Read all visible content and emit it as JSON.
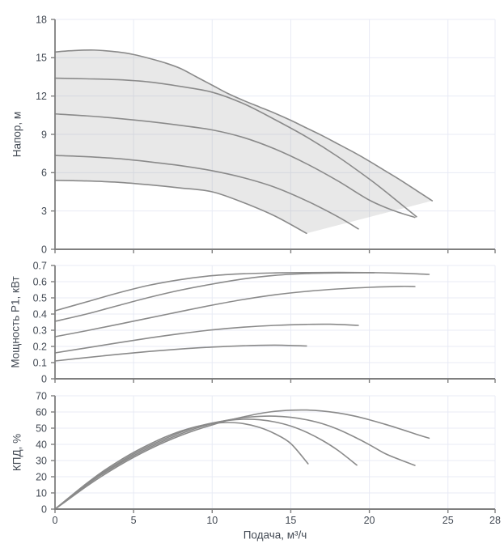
{
  "style": {
    "background": "#ffffff",
    "curve_color": "#8a8a8a",
    "grid_color": "#e8ebf5",
    "axis_color": "#7f7f7f",
    "text_color": "#434a54",
    "envelope_fill": "rgba(160,160,160,0.24)"
  },
  "axes": {
    "x": {
      "label": "Подача, м³/ч",
      "min": 0,
      "max": 28,
      "ticks": [
        0,
        5,
        10,
        15,
        20,
        25,
        28
      ],
      "grid": [
        5,
        10,
        15,
        20,
        25,
        28
      ]
    }
  },
  "chart_data": [
    {
      "type": "line",
      "id": "head",
      "ylabel": "Напор, м",
      "xlabel": "Подача, м³/ч",
      "ylim": [
        0,
        18
      ],
      "yticks": [
        0,
        3,
        6,
        9,
        12,
        15,
        18
      ],
      "grid": true,
      "legend": "none",
      "envelope": {
        "upper_series": 0,
        "lower_series": 4
      },
      "series": [
        {
          "name": "curve-1",
          "points": [
            [
              0,
              15.45
            ],
            [
              1,
              15.55
            ],
            [
              2.5,
              15.6
            ],
            [
              4,
              15.45
            ],
            [
              5,
              15.25
            ],
            [
              6,
              14.95
            ],
            [
              7,
              14.6
            ],
            [
              8,
              14.15
            ],
            [
              9,
              13.5
            ],
            [
              10,
              12.85
            ],
            [
              11,
              12.2
            ],
            [
              12,
              11.65
            ],
            [
              13,
              11.15
            ],
            [
              14,
              10.65
            ],
            [
              15,
              10.1
            ],
            [
              16,
              9.5
            ],
            [
              17,
              8.9
            ],
            [
              18,
              8.25
            ],
            [
              19,
              7.6
            ],
            [
              20,
              6.9
            ],
            [
              21,
              6.15
            ],
            [
              22,
              5.4
            ],
            [
              23,
              4.6
            ],
            [
              24,
              3.8
            ]
          ]
        },
        {
          "name": "curve-2",
          "points": [
            [
              0,
              13.4
            ],
            [
              2,
              13.35
            ],
            [
              4,
              13.28
            ],
            [
              6,
              13.1
            ],
            [
              8,
              12.75
            ],
            [
              10,
              12.3
            ],
            [
              12,
              11.4
            ],
            [
              14,
              10.15
            ],
            [
              16,
              8.8
            ],
            [
              18,
              7.25
            ],
            [
              20,
              5.5
            ],
            [
              21,
              4.55
            ],
            [
              22,
              3.55
            ],
            [
              23,
              2.55
            ]
          ]
        },
        {
          "name": "curve-3",
          "points": [
            [
              0,
              10.6
            ],
            [
              2,
              10.45
            ],
            [
              4,
              10.25
            ],
            [
              6,
              10.0
            ],
            [
              8,
              9.7
            ],
            [
              10,
              9.35
            ],
            [
              12,
              8.75
            ],
            [
              14,
              7.85
            ],
            [
              16,
              6.7
            ],
            [
              18,
              5.35
            ],
            [
              20,
              3.85
            ],
            [
              21.5,
              3.05
            ],
            [
              22.9,
              2.5
            ]
          ]
        },
        {
          "name": "curve-4",
          "points": [
            [
              0,
              7.35
            ],
            [
              2,
              7.25
            ],
            [
              4,
              7.1
            ],
            [
              6,
              6.85
            ],
            [
              8,
              6.55
            ],
            [
              10,
              6.15
            ],
            [
              12,
              5.6
            ],
            [
              14,
              4.85
            ],
            [
              16,
              3.8
            ],
            [
              18,
              2.55
            ],
            [
              19.3,
              1.6
            ]
          ]
        },
        {
          "name": "curve-5",
          "points": [
            [
              0,
              5.4
            ],
            [
              2,
              5.35
            ],
            [
              4,
              5.25
            ],
            [
              6,
              5.05
            ],
            [
              8,
              4.8
            ],
            [
              10,
              4.5
            ],
            [
              12,
              3.65
            ],
            [
              14,
              2.6
            ],
            [
              16,
              1.25
            ]
          ]
        }
      ]
    },
    {
      "type": "line",
      "id": "power",
      "ylabel": "Мощность P1, кВт",
      "xlabel": "Подача, м³/ч",
      "ylim": [
        0,
        0.7
      ],
      "yticks": [
        0,
        0.1,
        0.2,
        0.3,
        0.4,
        0.5,
        0.6,
        0.7
      ],
      "grid": true,
      "legend": "none",
      "series": [
        {
          "name": "curve-1",
          "points": [
            [
              0,
              0.42
            ],
            [
              2,
              0.475
            ],
            [
              4,
              0.53
            ],
            [
              6,
              0.578
            ],
            [
              8,
              0.613
            ],
            [
              10,
              0.637
            ],
            [
              12,
              0.649
            ],
            [
              14,
              0.654
            ],
            [
              16,
              0.656
            ],
            [
              18,
              0.657
            ],
            [
              20,
              0.656
            ],
            [
              22,
              0.652
            ],
            [
              23.8,
              0.645
            ]
          ]
        },
        {
          "name": "curve-2",
          "points": [
            [
              0,
              0.355
            ],
            [
              2,
              0.4
            ],
            [
              4,
              0.452
            ],
            [
              6,
              0.503
            ],
            [
              8,
              0.548
            ],
            [
              10,
              0.585
            ],
            [
              12,
              0.617
            ],
            [
              14,
              0.639
            ],
            [
              16,
              0.65
            ],
            [
              18,
              0.654
            ],
            [
              20.3,
              0.655
            ]
          ]
        },
        {
          "name": "curve-3",
          "points": [
            [
              0,
              0.26
            ],
            [
              2,
              0.297
            ],
            [
              4,
              0.336
            ],
            [
              6,
              0.376
            ],
            [
              8,
              0.416
            ],
            [
              10,
              0.455
            ],
            [
              12,
              0.49
            ],
            [
              14,
              0.519
            ],
            [
              16,
              0.54
            ],
            [
              18,
              0.555
            ],
            [
              20,
              0.565
            ],
            [
              22,
              0.571
            ],
            [
              22.9,
              0.57
            ]
          ]
        },
        {
          "name": "curve-4",
          "points": [
            [
              0,
              0.16
            ],
            [
              2,
              0.191
            ],
            [
              4,
              0.222
            ],
            [
              6,
              0.252
            ],
            [
              8,
              0.279
            ],
            [
              10,
              0.302
            ],
            [
              12,
              0.319
            ],
            [
              14,
              0.33
            ],
            [
              16,
              0.336
            ],
            [
              17.5,
              0.337
            ],
            [
              19.3,
              0.33
            ]
          ]
        },
        {
          "name": "curve-5",
          "points": [
            [
              0,
              0.11
            ],
            [
              2,
              0.131
            ],
            [
              4,
              0.151
            ],
            [
              6,
              0.169
            ],
            [
              8,
              0.184
            ],
            [
              10,
              0.196
            ],
            [
              12,
              0.204
            ],
            [
              14,
              0.208
            ],
            [
              16,
              0.203
            ]
          ]
        }
      ]
    },
    {
      "type": "line",
      "id": "efficiency",
      "ylabel": "КПД, %",
      "xlabel": "Подача, м³/ч",
      "ylim": [
        0,
        70
      ],
      "yticks": [
        0,
        10,
        20,
        30,
        40,
        50,
        60,
        70
      ],
      "grid": true,
      "legend": "none",
      "series": [
        {
          "name": "curve-1",
          "points": [
            [
              0,
              0
            ],
            [
              1,
              7
            ],
            [
              2,
              14
            ],
            [
              3,
              20.5
            ],
            [
              4,
              26.5
            ],
            [
              5,
              32
            ],
            [
              6,
              37
            ],
            [
              7,
              41.5
            ],
            [
              8,
              45.5
            ],
            [
              9,
              49
            ],
            [
              10,
              52
            ],
            [
              11,
              54.8
            ],
            [
              12,
              57
            ],
            [
              13,
              59
            ],
            [
              14,
              60.4
            ],
            [
              15,
              61.1
            ],
            [
              16,
              61.2
            ],
            [
              17,
              60.6
            ],
            [
              18,
              59.4
            ],
            [
              19,
              57.6
            ],
            [
              20,
              55.2
            ],
            [
              21,
              52.4
            ],
            [
              22,
              49.4
            ],
            [
              23,
              46.2
            ],
            [
              23.8,
              43.8
            ]
          ]
        },
        {
          "name": "curve-2",
          "points": [
            [
              0,
              0
            ],
            [
              1,
              7.5
            ],
            [
              2,
              14.8
            ],
            [
              3,
              21.5
            ],
            [
              4,
              27.5
            ],
            [
              5,
              33
            ],
            [
              6,
              38
            ],
            [
              7,
              42.5
            ],
            [
              8,
              46.5
            ],
            [
              9,
              50
            ],
            [
              10,
              52.8
            ],
            [
              11,
              55
            ],
            [
              12,
              56.5
            ],
            [
              13,
              57.3
            ],
            [
              14,
              57.4
            ],
            [
              15,
              56.7
            ],
            [
              16,
              55.2
            ],
            [
              17,
              52.8
            ],
            [
              18,
              49.3
            ],
            [
              19,
              44.8
            ],
            [
              20,
              39.8
            ],
            [
              21,
              34.3
            ],
            [
              22,
              30.3
            ],
            [
              22.9,
              27
            ]
          ]
        },
        {
          "name": "curve-3",
          "points": [
            [
              0,
              0
            ],
            [
              1,
              7.8
            ],
            [
              2,
              15.3
            ],
            [
              3,
              22.2
            ],
            [
              4,
              28.3
            ],
            [
              5,
              34
            ],
            [
              6,
              39
            ],
            [
              7,
              43.5
            ],
            [
              8,
              47.5
            ],
            [
              9,
              50.8
            ],
            [
              10,
              53.2
            ],
            [
              11,
              54.8
            ],
            [
              12,
              55.5
            ],
            [
              13,
              55.2
            ],
            [
              14,
              53.8
            ],
            [
              15,
              51.3
            ],
            [
              16,
              47.5
            ],
            [
              17,
              42.5
            ],
            [
              18,
              36.3
            ],
            [
              19.2,
              27.2
            ]
          ]
        },
        {
          "name": "curve-4",
          "points": [
            [
              0,
              0
            ],
            [
              1,
              8
            ],
            [
              2,
              15.8
            ],
            [
              3,
              23
            ],
            [
              4,
              29.3
            ],
            [
              5,
              35
            ],
            [
              6,
              40
            ],
            [
              7,
              44.5
            ],
            [
              8,
              48.2
            ],
            [
              9,
              51
            ],
            [
              10,
              52.8
            ],
            [
              11,
              53.5
            ],
            [
              12,
              52.8
            ],
            [
              13,
              50.5
            ],
            [
              14,
              46.5
            ],
            [
              15,
              40.5
            ],
            [
              16.1,
              28
            ]
          ]
        }
      ]
    }
  ]
}
